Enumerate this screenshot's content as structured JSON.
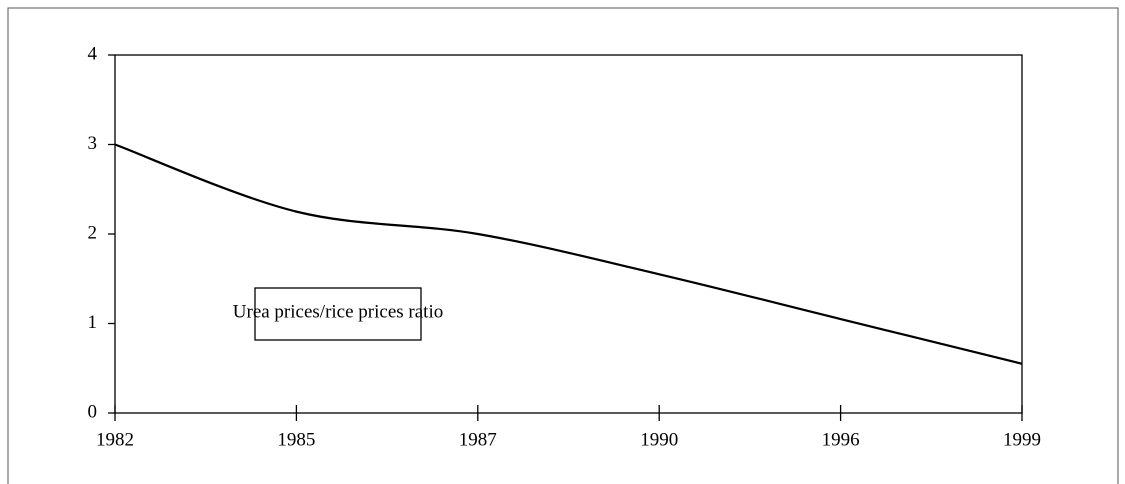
{
  "chart_data": {
    "type": "line",
    "categories": [
      "1982",
      "1985",
      "1987",
      "1990",
      "1996",
      "1999"
    ],
    "series": [
      {
        "name": "Urea prices/rice prices ratio",
        "color": "#000000",
        "values": [
          3.0,
          2.25,
          2.0,
          1.55,
          1.05,
          0.55
        ]
      }
    ],
    "ylim": [
      0,
      4
    ],
    "yticks": [
      0,
      1,
      2,
      3,
      4
    ],
    "grid": false,
    "smooth": true
  }
}
